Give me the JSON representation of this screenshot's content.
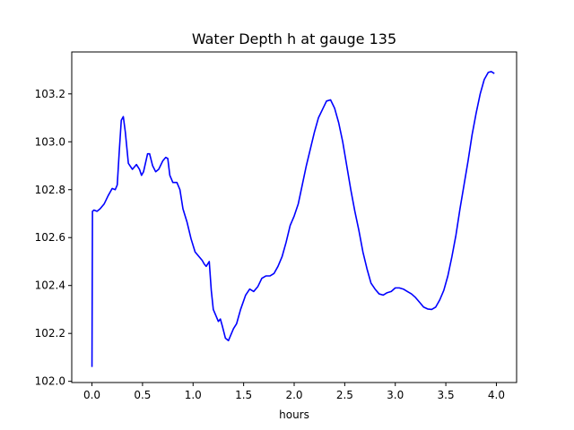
{
  "chart_data": {
    "type": "line",
    "title": "Water Depth h at gauge 135",
    "xlabel": "hours",
    "ylabel": "",
    "xlim": [
      -0.2,
      4.2
    ],
    "ylim": [
      101.995,
      103.375
    ],
    "x_ticks": [
      0.0,
      0.5,
      1.0,
      1.5,
      2.0,
      2.5,
      3.0,
      3.5,
      4.0
    ],
    "x_tick_labels": [
      "0.0",
      "0.5",
      "1.0",
      "1.5",
      "2.0",
      "2.5",
      "3.0",
      "3.5",
      "4.0"
    ],
    "y_ticks": [
      102.0,
      102.2,
      102.4,
      102.6,
      102.8,
      103.0,
      103.2
    ],
    "y_tick_labels": [
      "102.0",
      "102.2",
      "102.4",
      "102.6",
      "102.8",
      "103.0",
      "103.2"
    ],
    "grid": false,
    "series": [
      {
        "color": "#0000ff",
        "points": [
          [
            0.0,
            102.06
          ],
          [
            0.005,
            102.71
          ],
          [
            0.02,
            102.715
          ],
          [
            0.05,
            102.71
          ],
          [
            0.08,
            102.72
          ],
          [
            0.12,
            102.74
          ],
          [
            0.16,
            102.775
          ],
          [
            0.2,
            102.805
          ],
          [
            0.23,
            102.8
          ],
          [
            0.25,
            102.82
          ],
          [
            0.27,
            102.96
          ],
          [
            0.29,
            103.09
          ],
          [
            0.31,
            103.105
          ],
          [
            0.33,
            103.04
          ],
          [
            0.36,
            102.91
          ],
          [
            0.4,
            102.885
          ],
          [
            0.44,
            102.905
          ],
          [
            0.47,
            102.885
          ],
          [
            0.49,
            102.86
          ],
          [
            0.51,
            102.875
          ],
          [
            0.55,
            102.95
          ],
          [
            0.57,
            102.95
          ],
          [
            0.6,
            102.9
          ],
          [
            0.63,
            102.875
          ],
          [
            0.66,
            102.885
          ],
          [
            0.7,
            102.92
          ],
          [
            0.73,
            102.935
          ],
          [
            0.75,
            102.93
          ],
          [
            0.77,
            102.86
          ],
          [
            0.8,
            102.83
          ],
          [
            0.84,
            102.83
          ],
          [
            0.87,
            102.8
          ],
          [
            0.9,
            102.72
          ],
          [
            0.94,
            102.665
          ],
          [
            0.98,
            102.595
          ],
          [
            1.02,
            102.54
          ],
          [
            1.06,
            102.52
          ],
          [
            1.09,
            102.505
          ],
          [
            1.11,
            102.49
          ],
          [
            1.13,
            102.48
          ],
          [
            1.16,
            102.5
          ],
          [
            1.18,
            102.38
          ],
          [
            1.2,
            102.3
          ],
          [
            1.23,
            102.27
          ],
          [
            1.25,
            102.25
          ],
          [
            1.27,
            102.26
          ],
          [
            1.29,
            102.23
          ],
          [
            1.32,
            102.18
          ],
          [
            1.35,
            102.17
          ],
          [
            1.37,
            102.19
          ],
          [
            1.4,
            102.22
          ],
          [
            1.43,
            102.24
          ],
          [
            1.47,
            102.3
          ],
          [
            1.52,
            102.36
          ],
          [
            1.56,
            102.385
          ],
          [
            1.6,
            102.375
          ],
          [
            1.64,
            102.395
          ],
          [
            1.68,
            102.43
          ],
          [
            1.72,
            102.44
          ],
          [
            1.76,
            102.44
          ],
          [
            1.8,
            102.45
          ],
          [
            1.84,
            102.48
          ],
          [
            1.88,
            102.52
          ],
          [
            1.92,
            102.58
          ],
          [
            1.96,
            102.65
          ],
          [
            2.0,
            102.69
          ],
          [
            2.04,
            102.74
          ],
          [
            2.08,
            102.82
          ],
          [
            2.12,
            102.9
          ],
          [
            2.16,
            102.97
          ],
          [
            2.2,
            103.04
          ],
          [
            2.24,
            103.1
          ],
          [
            2.28,
            103.135
          ],
          [
            2.32,
            103.17
          ],
          [
            2.36,
            103.175
          ],
          [
            2.4,
            103.14
          ],
          [
            2.44,
            103.08
          ],
          [
            2.48,
            103.0
          ],
          [
            2.52,
            102.9
          ],
          [
            2.56,
            102.8
          ],
          [
            2.6,
            102.71
          ],
          [
            2.64,
            102.63
          ],
          [
            2.68,
            102.54
          ],
          [
            2.72,
            102.47
          ],
          [
            2.76,
            102.41
          ],
          [
            2.8,
            102.385
          ],
          [
            2.84,
            102.365
          ],
          [
            2.88,
            102.36
          ],
          [
            2.92,
            102.37
          ],
          [
            2.96,
            102.375
          ],
          [
            3.0,
            102.39
          ],
          [
            3.04,
            102.39
          ],
          [
            3.08,
            102.385
          ],
          [
            3.12,
            102.375
          ],
          [
            3.16,
            102.365
          ],
          [
            3.2,
            102.35
          ],
          [
            3.24,
            102.33
          ],
          [
            3.28,
            102.31
          ],
          [
            3.32,
            102.302
          ],
          [
            3.36,
            102.3
          ],
          [
            3.4,
            102.31
          ],
          [
            3.44,
            102.34
          ],
          [
            3.48,
            102.38
          ],
          [
            3.52,
            102.44
          ],
          [
            3.56,
            102.52
          ],
          [
            3.6,
            102.61
          ],
          [
            3.64,
            102.72
          ],
          [
            3.68,
            102.82
          ],
          [
            3.72,
            102.92
          ],
          [
            3.76,
            103.03
          ],
          [
            3.8,
            103.12
          ],
          [
            3.84,
            103.2
          ],
          [
            3.88,
            103.26
          ],
          [
            3.92,
            103.29
          ],
          [
            3.95,
            103.293
          ],
          [
            3.98,
            103.285
          ]
        ]
      }
    ]
  }
}
